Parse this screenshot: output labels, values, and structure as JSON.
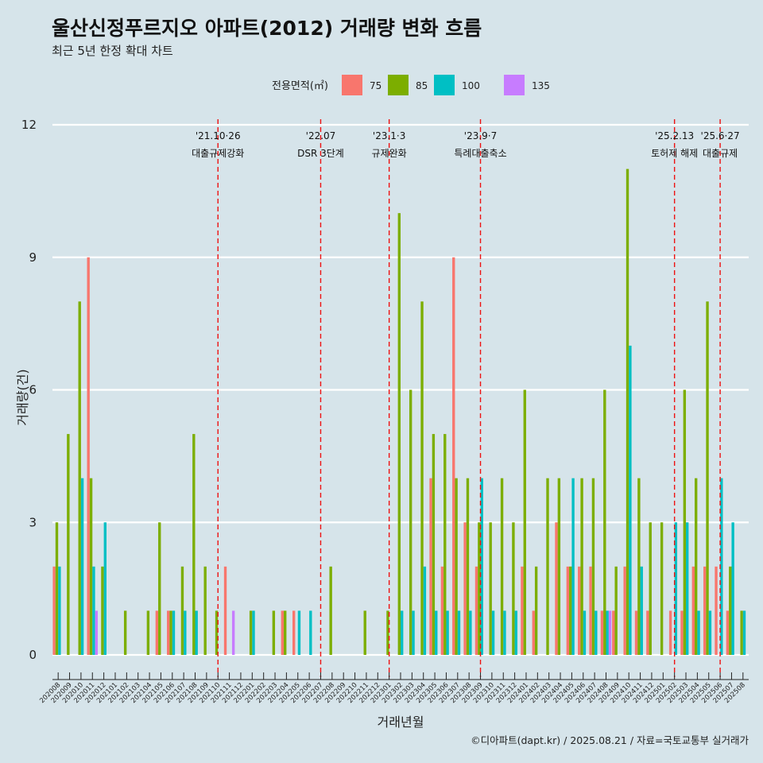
{
  "chart_data": {
    "type": "bar",
    "title": "울산신정푸르지오 아파트(2012) 거래량 변화 흐름",
    "subtitle": "최근 5년 한정 확대 차트",
    "xlabel": "거래년월",
    "ylabel": "거래량(건)",
    "ylim": [
      0,
      12
    ],
    "yticks": [
      0,
      3,
      6,
      9,
      12
    ],
    "grid": true,
    "legend": {
      "title": "전용면적(㎡)",
      "placement": "top",
      "entries": [
        "75",
        "85",
        "100",
        "135"
      ]
    },
    "categories": [
      "202008",
      "202009",
      "202010",
      "202011",
      "202012",
      "202101",
      "202102",
      "202103",
      "202104",
      "202105",
      "202106",
      "202107",
      "202108",
      "202109",
      "202110",
      "202111",
      "202112",
      "202201",
      "202202",
      "202203",
      "202204",
      "202205",
      "202206",
      "202207",
      "202208",
      "202209",
      "202210",
      "202211",
      "202212",
      "202301",
      "202302",
      "202303",
      "202304",
      "202305",
      "202306",
      "202307",
      "202308",
      "202309",
      "202310",
      "202311",
      "202312",
      "202401",
      "202402",
      "202403",
      "202404",
      "202405",
      "202406",
      "202407",
      "202408",
      "202409",
      "202410",
      "202411",
      "202412",
      "202501",
      "202502",
      "202503",
      "202504",
      "202505",
      "202506",
      "202507",
      "202508"
    ],
    "series": [
      {
        "name": "75",
        "color": "#f8766d",
        "values": [
          2,
          0,
          0,
          9,
          0,
          0,
          0,
          0,
          0,
          1,
          1,
          0,
          0,
          0,
          0,
          2,
          0,
          0,
          0,
          0,
          1,
          1,
          0,
          0,
          0,
          0,
          0,
          0,
          0,
          0,
          0,
          0,
          0,
          4,
          2,
          9,
          3,
          2,
          0,
          0,
          0,
          2,
          1,
          0,
          3,
          2,
          2,
          2,
          1,
          1,
          2,
          1,
          1,
          0,
          1,
          1,
          2,
          2,
          2,
          1,
          0
        ]
      },
      {
        "name": "85",
        "color": "#7cae00",
        "values": [
          3,
          5,
          8,
          4,
          2,
          0,
          1,
          0,
          1,
          3,
          1,
          2,
          5,
          2,
          1,
          0,
          0,
          1,
          0,
          1,
          1,
          0,
          0,
          0,
          2,
          0,
          0,
          1,
          0,
          1,
          10,
          6,
          8,
          5,
          5,
          4,
          4,
          3,
          3,
          4,
          3,
          6,
          2,
          4,
          4,
          2,
          4,
          4,
          6,
          2,
          11,
          4,
          3,
          3,
          0,
          6,
          4,
          8,
          0,
          2,
          1
        ]
      },
      {
        "name": "100",
        "color": "#00bfc4",
        "values": [
          2,
          0,
          4,
          2,
          3,
          0,
          0,
          0,
          0,
          0,
          1,
          1,
          1,
          0,
          0,
          0,
          0,
          1,
          0,
          0,
          0,
          1,
          1,
          0,
          0,
          0,
          0,
          0,
          0,
          0,
          1,
          1,
          2,
          1,
          1,
          1,
          1,
          4,
          1,
          1,
          1,
          0,
          0,
          0,
          0,
          4,
          1,
          1,
          1,
          0,
          7,
          2,
          0,
          0,
          3,
          3,
          1,
          1,
          4,
          3,
          1
        ]
      },
      {
        "name": "135",
        "color": "#c77cff",
        "values": [
          0,
          0,
          0,
          1,
          0,
          0,
          0,
          0,
          0,
          0,
          0,
          0,
          0,
          0,
          0,
          1,
          0,
          0,
          0,
          0,
          0,
          0,
          0,
          0,
          0,
          0,
          0,
          0,
          0,
          0,
          0,
          0,
          0,
          0,
          0,
          0,
          0,
          0,
          0,
          0,
          0,
          0,
          0,
          0,
          0,
          0,
          0,
          0,
          1,
          0,
          0,
          0,
          0,
          0,
          0,
          0,
          0,
          0,
          0,
          0,
          0
        ]
      }
    ],
    "annotations": [
      {
        "date": "'21.10·26",
        "label": "대출규제강화",
        "position_x": 14.5
      },
      {
        "date": "'22.07",
        "label": "DSR 3단계",
        "position_x": 23.5
      },
      {
        "date": "'23.1·3",
        "label": "규제완화",
        "position_x": 29.5
      },
      {
        "date": "'23.9·7",
        "label": "특례대출축소",
        "position_x": 37.5
      },
      {
        "date": "'25.2.13",
        "label": "토허제 해제",
        "position_x": 54.5
      },
      {
        "date": "'25.6·27",
        "label": "대출규제",
        "position_x": 58.5
      }
    ],
    "caption": "©디아파트(dapt.kr) / 2025.08.21 / 자료=국토교통부 실거래가"
  }
}
